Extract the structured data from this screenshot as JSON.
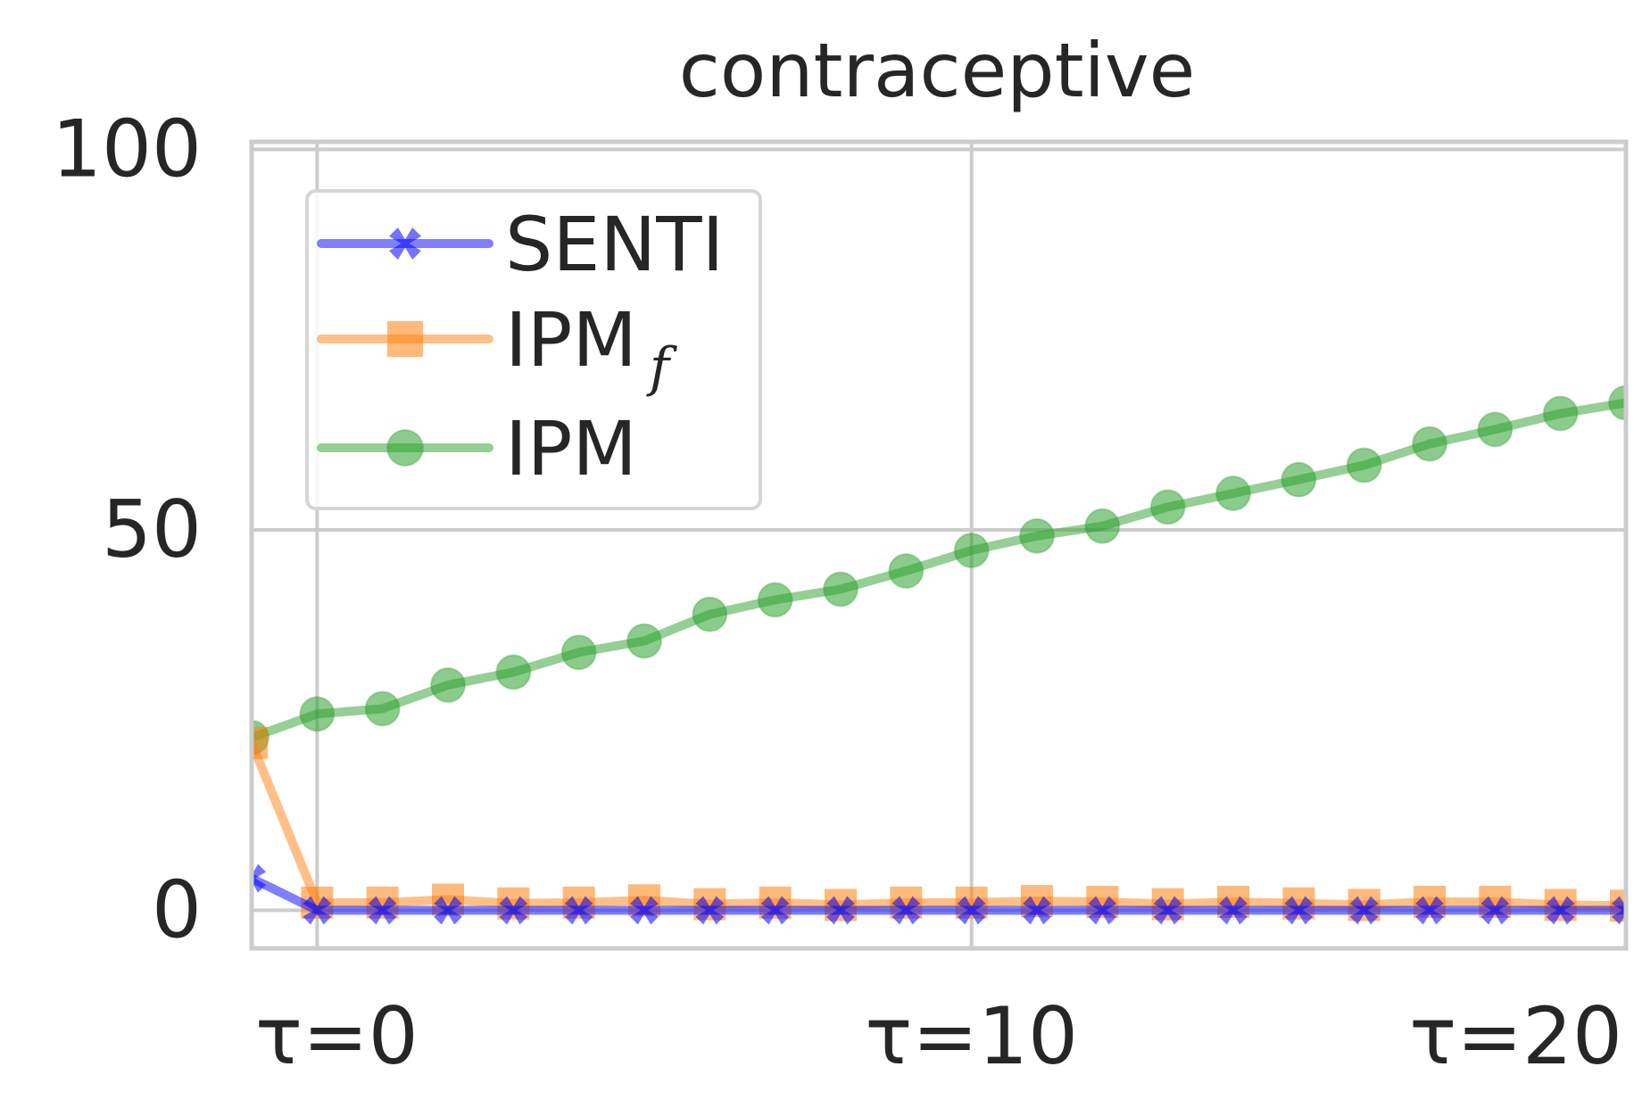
{
  "chart_data": {
    "type": "line",
    "title": "contraceptive",
    "xlabel": "",
    "ylabel": "",
    "x": [
      -1,
      0,
      1,
      2,
      3,
      4,
      5,
      6,
      7,
      8,
      9,
      10,
      11,
      12,
      13,
      14,
      15,
      16,
      17,
      18,
      19,
      20
    ],
    "xlim": [
      -1,
      20
    ],
    "ylim": [
      -5,
      101
    ],
    "xticks": [
      0,
      10,
      20
    ],
    "xtick_labels": [
      "τ=0",
      "τ=10",
      "τ=20"
    ],
    "yticks": [
      0,
      50,
      100
    ],
    "ytick_labels": [
      "0",
      "50",
      "100"
    ],
    "grid": true,
    "legend": "upper left",
    "series": [
      {
        "name": "SENTI",
        "color": "#0000ff",
        "marker": "x",
        "values": [
          4.2,
          0,
          0,
          0,
          0,
          0,
          0,
          0,
          0,
          0,
          0,
          0,
          0,
          0,
          0,
          0,
          0,
          0,
          0,
          0,
          0,
          0
        ]
      },
      {
        "name": "IPM",
        "name_subscript": "f",
        "color": "#ff7f0e",
        "marker": "square",
        "values": [
          22,
          1,
          1,
          1.4,
          0.9,
          1,
          1.3,
          0.8,
          1,
          0.7,
          1,
          1,
          1.2,
          1.1,
          0.8,
          1.1,
          0.9,
          0.7,
          1.1,
          1.1,
          0.7,
          0.6
        ]
      },
      {
        "name": "IPM",
        "color": "#2ca02c",
        "marker": "circle",
        "values": [
          22.7,
          25.8,
          26.5,
          29.6,
          31.3,
          33.9,
          35.4,
          38.9,
          40.8,
          42.2,
          44.6,
          47.3,
          49.2,
          50.5,
          53,
          54.8,
          56.6,
          58.5,
          61.3,
          63.2,
          65.3,
          66.7
        ]
      }
    ]
  }
}
